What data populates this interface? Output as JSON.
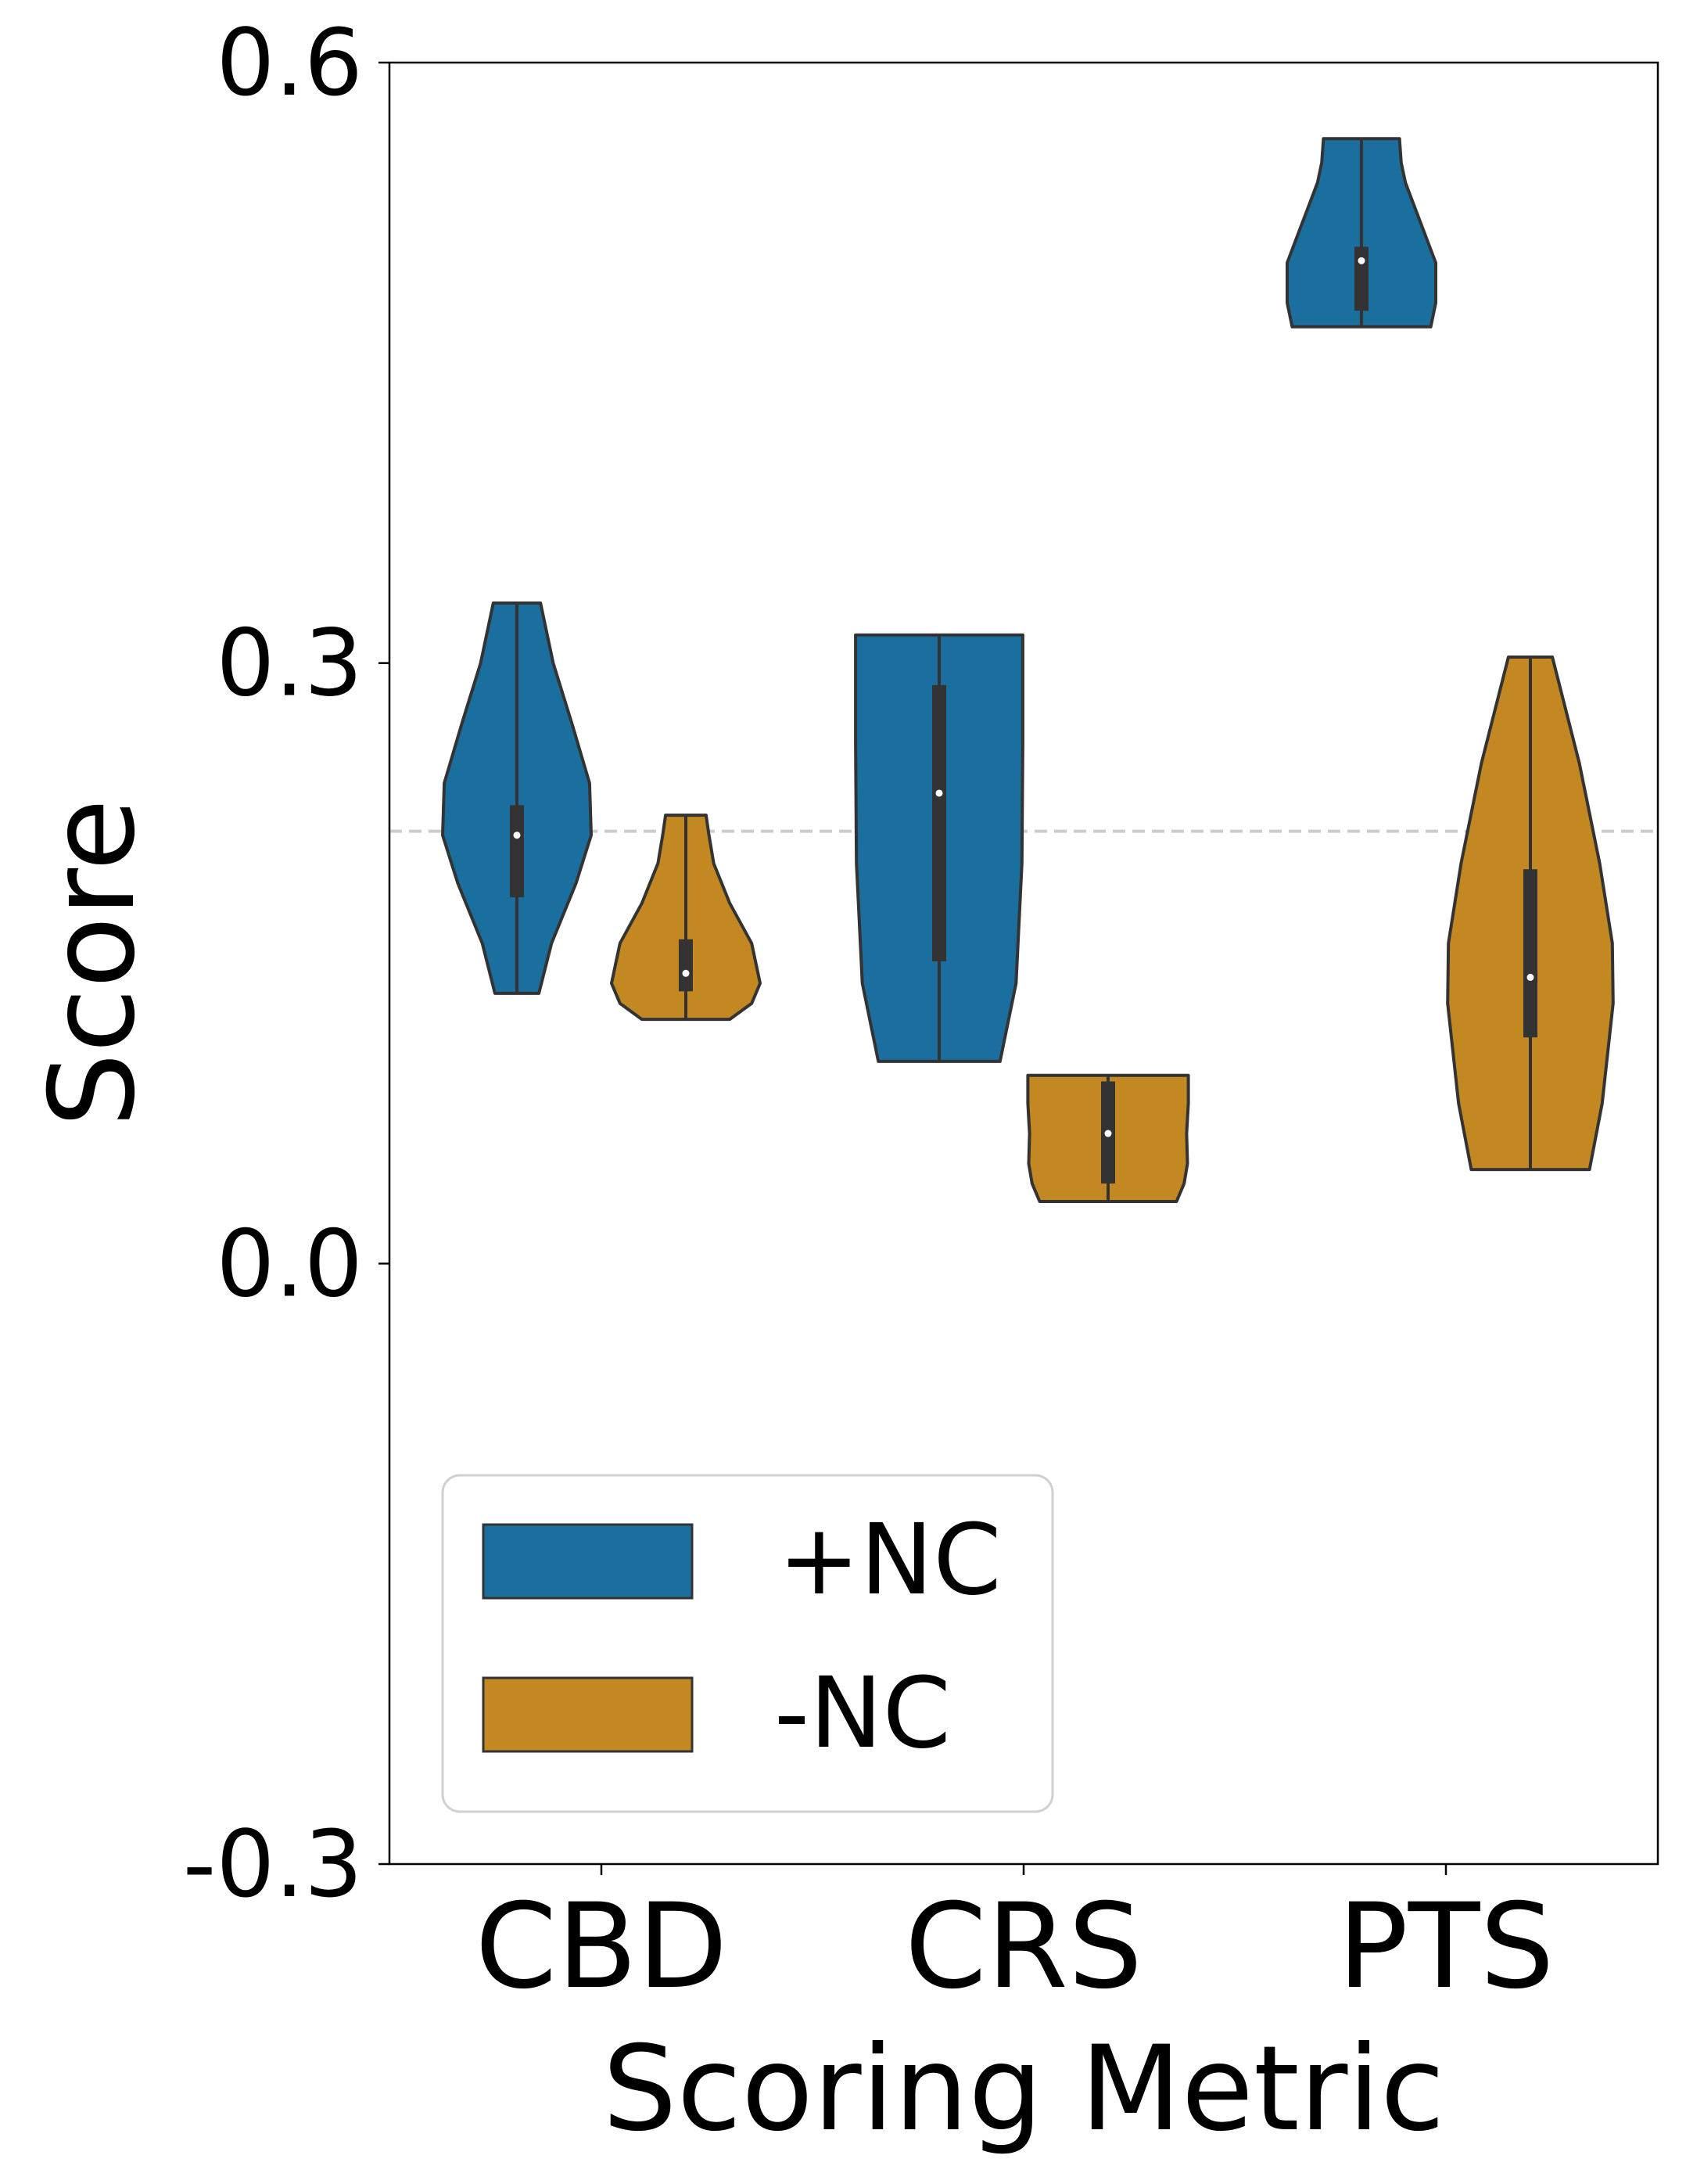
{
  "chart_data": {
    "type": "violin",
    "xlabel": "Scoring Metric",
    "ylabel": "Score",
    "categories": [
      "CBD",
      "CRS",
      "PTS"
    ],
    "yticks": [
      "0.6",
      "0.3",
      "0.0",
      "-0.3"
    ],
    "ytick_values": [
      0.6,
      0.3,
      0.0,
      -0.3
    ],
    "ylim": [
      -0.3,
      0.6
    ],
    "reference_line": 0.216,
    "legend": {
      "position": "lower-left"
    },
    "colors": {
      "+NC": "#1a6f9f",
      "-NC": "#c38821",
      "box": "#333333",
      "refline": "#cccccc"
    },
    "series": [
      {
        "name": "+NC",
        "stats": [
          {
            "min": 0.135,
            "q1": 0.183,
            "median": 0.214,
            "q3": 0.229,
            "max": 0.33
          },
          {
            "min": 0.101,
            "q1": 0.151,
            "median": 0.235,
            "q3": 0.289,
            "max": 0.314
          },
          {
            "min": 0.468,
            "q1": 0.476,
            "median": 0.501,
            "q3": 0.508,
            "max": 0.562
          }
        ],
        "profiles": [
          [
            [
              0.135,
              0.26
            ],
            [
              0.16,
              0.41
            ],
            [
              0.19,
              0.7
            ],
            [
              0.214,
              0.88
            ],
            [
              0.24,
              0.86
            ],
            [
              0.27,
              0.65
            ],
            [
              0.3,
              0.43
            ],
            [
              0.32,
              0.33
            ],
            [
              0.33,
              0.28
            ]
          ],
          [
            [
              0.101,
              0.72
            ],
            [
              0.14,
              0.91
            ],
            [
              0.2,
              0.98
            ],
            [
              0.26,
              0.99
            ],
            [
              0.29,
              0.99
            ],
            [
              0.314,
              0.99
            ]
          ],
          [
            [
              0.468,
              0.82
            ],
            [
              0.48,
              0.88
            ],
            [
              0.5,
              0.88
            ],
            [
              0.52,
              0.7
            ],
            [
              0.54,
              0.52
            ],
            [
              0.55,
              0.47
            ],
            [
              0.562,
              0.45
            ]
          ]
        ]
      },
      {
        "name": "-NC",
        "stats": [
          {
            "min": 0.122,
            "q1": 0.136,
            "median": 0.145,
            "q3": 0.162,
            "max": 0.224
          },
          {
            "min": 0.031,
            "q1": 0.04,
            "median": 0.065,
            "q3": 0.091,
            "max": 0.094
          },
          {
            "min": 0.047,
            "q1": 0.113,
            "median": 0.143,
            "q3": 0.197,
            "max": 0.303
          }
        ],
        "profiles": [
          [
            [
              0.122,
              0.52
            ],
            [
              0.13,
              0.78
            ],
            [
              0.14,
              0.88
            ],
            [
              0.16,
              0.78
            ],
            [
              0.18,
              0.52
            ],
            [
              0.2,
              0.33
            ],
            [
              0.215,
              0.27
            ],
            [
              0.224,
              0.24
            ]
          ],
          [
            [
              0.031,
              0.81
            ],
            [
              0.04,
              0.9
            ],
            [
              0.05,
              0.94
            ],
            [
              0.065,
              0.93
            ],
            [
              0.08,
              0.95
            ],
            [
              0.094,
              0.95
            ]
          ],
          [
            [
              0.047,
              0.7
            ],
            [
              0.08,
              0.85
            ],
            [
              0.13,
              0.98
            ],
            [
              0.16,
              0.97
            ],
            [
              0.2,
              0.82
            ],
            [
              0.25,
              0.58
            ],
            [
              0.303,
              0.26
            ]
          ]
        ]
      }
    ]
  }
}
